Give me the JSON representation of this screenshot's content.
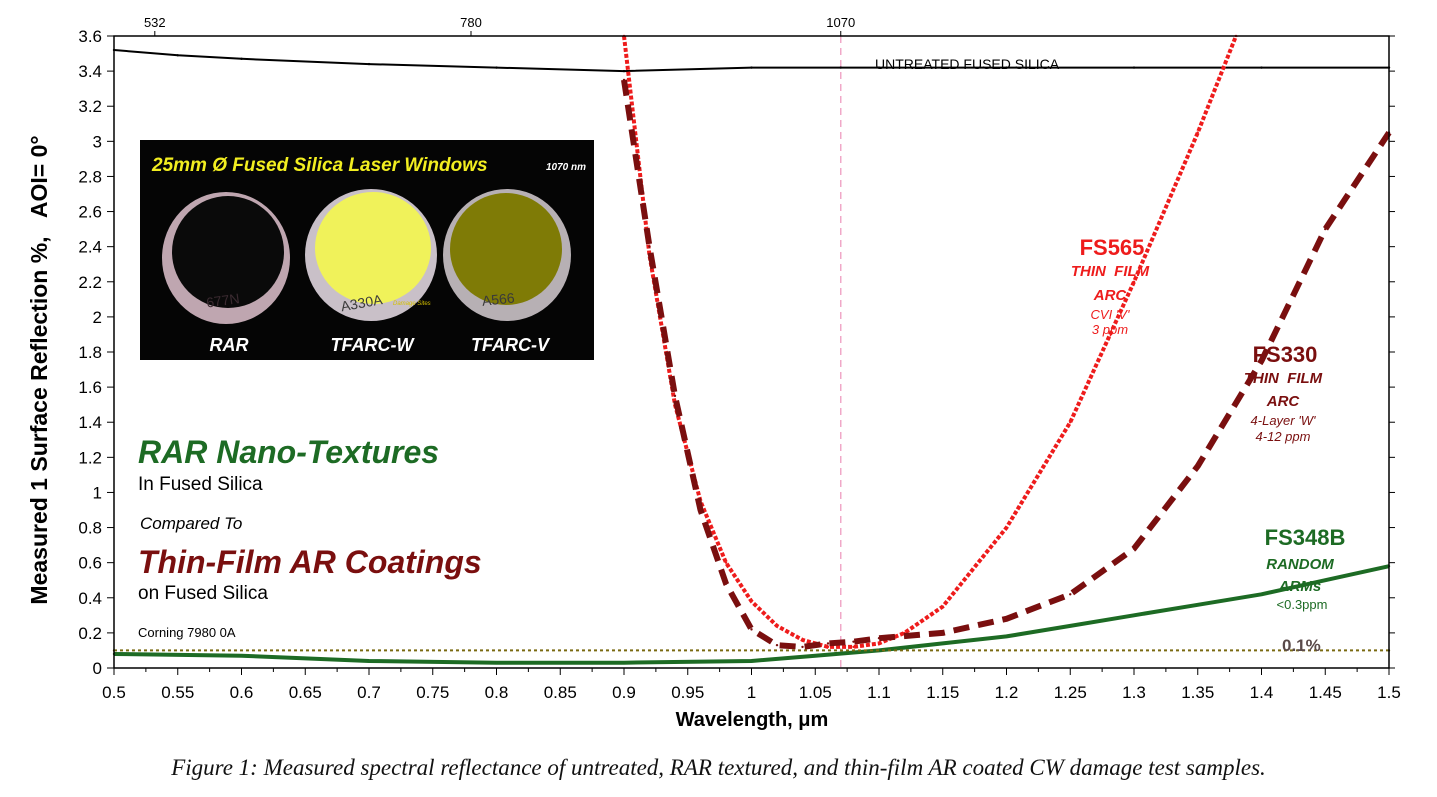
{
  "caption": "Figure 1:  Measured spectral reflectance of untreated, RAR textured, and thin-film AR coated CW damage test samples.",
  "colors": {
    "untreated": "#000000",
    "fs565": "#ee1c1c",
    "fs330": "#7a0f0f",
    "fs348b": "#1d6b24",
    "ref_line": "#7a6a10",
    "marker_line": "#f0a8c8",
    "green_text": "#1d6b24",
    "maroon_text": "#7a0f0f"
  },
  "chart_data": {
    "type": "line",
    "title": "",
    "xlabel": "Wavelength, μm",
    "ylabel": "Measured 1 Surface Reflection %,   AOI= 0°",
    "xlim": [
      0.5,
      1.5
    ],
    "ylim": [
      0,
      3.6
    ],
    "xticks": [
      "0.5",
      "0.55",
      "0.6",
      "0.65",
      "0.7",
      "0.75",
      "0.8",
      "0.85",
      "0.9",
      "0.95",
      "1",
      "1.05",
      "1.1",
      "1.15",
      "1.2",
      "1.25",
      "1.3",
      "1.35",
      "1.4",
      "1.45",
      "1.5"
    ],
    "yticks": [
      "0",
      "0.2",
      "0.4",
      "0.6",
      "0.8",
      "1",
      "1.2",
      "1.4",
      "1.6",
      "1.8",
      "2",
      "2.2",
      "2.4",
      "2.6",
      "2.8",
      "3",
      "3.2",
      "3.4",
      "3.6"
    ],
    "top_axis_labels": [
      {
        "x": 0.532,
        "label": "532"
      },
      {
        "x": 0.78,
        "label": "780"
      },
      {
        "x": 1.07,
        "label": "1070"
      }
    ],
    "grid": false,
    "series": [
      {
        "name": "UNTREATED FUSED SILICA",
        "style": "solid",
        "x": [
          0.5,
          0.55,
          0.6,
          0.7,
          0.8,
          0.9,
          1.0,
          1.07,
          1.1,
          1.2,
          1.3,
          1.4,
          1.5
        ],
        "y": [
          3.52,
          3.49,
          3.47,
          3.44,
          3.42,
          3.4,
          3.42,
          3.42,
          3.42,
          3.42,
          3.42,
          3.42,
          3.42
        ]
      },
      {
        "name": "FS565",
        "style": "dotted",
        "x": [
          0.9,
          0.92,
          0.94,
          0.96,
          0.98,
          1.0,
          1.02,
          1.04,
          1.06,
          1.08,
          1.1,
          1.12,
          1.15,
          1.2,
          1.25,
          1.3,
          1.35,
          1.38
        ],
        "y": [
          3.6,
          2.35,
          1.5,
          0.95,
          0.6,
          0.38,
          0.24,
          0.16,
          0.12,
          0.12,
          0.14,
          0.2,
          0.35,
          0.8,
          1.4,
          2.2,
          3.05,
          3.6
        ]
      },
      {
        "name": "FS330",
        "style": "dashed",
        "x": [
          0.9,
          0.92,
          0.94,
          0.96,
          0.98,
          1.0,
          1.02,
          1.04,
          1.06,
          1.08,
          1.1,
          1.15,
          1.2,
          1.25,
          1.3,
          1.35,
          1.4,
          1.45,
          1.5
        ],
        "y": [
          3.35,
          2.4,
          1.55,
          0.9,
          0.48,
          0.22,
          0.13,
          0.12,
          0.14,
          0.15,
          0.17,
          0.2,
          0.28,
          0.42,
          0.68,
          1.15,
          1.75,
          2.5,
          3.05
        ]
      },
      {
        "name": "FS348B",
        "style": "solid",
        "x": [
          0.5,
          0.6,
          0.7,
          0.8,
          0.9,
          1.0,
          1.05,
          1.1,
          1.15,
          1.2,
          1.25,
          1.3,
          1.35,
          1.4,
          1.45,
          1.5
        ],
        "y": [
          0.08,
          0.07,
          0.04,
          0.03,
          0.03,
          0.04,
          0.07,
          0.1,
          0.14,
          0.18,
          0.24,
          0.3,
          0.36,
          0.42,
          0.5,
          0.58
        ]
      },
      {
        "name": "0.1%",
        "style": "dotted",
        "x": [
          0.5,
          1.5
        ],
        "y": [
          0.1,
          0.1
        ]
      }
    ],
    "vertical_marker": {
      "x": 1.07,
      "style": "dashed"
    },
    "annotations": {
      "untreated": "UNTREATED FUSED SILICA",
      "fs565": {
        "title": "FS565",
        "l1": "THIN  FILM",
        "l2": "ARC",
        "l3": "CVI 'V'",
        "l4": "3 ppm"
      },
      "fs330": {
        "title": "FS330",
        "l1": "THIN  FILM",
        "l2": "ARC",
        "l3": "4-Layer 'W'",
        "l4": "4-12 ppm"
      },
      "fs348b": {
        "title": "FS348B",
        "l1": "RANDOM",
        "l2": "ARMs",
        "l3": "<0.3ppm"
      },
      "ref_line": "0.1%",
      "rar_title": "RAR Nano-Textures",
      "rar_sub": "In Fused Silica",
      "compared": "Compared To",
      "tf_title": "Thin-Film AR Coatings",
      "tf_sub": "on Fused Silica",
      "corning": "Corning 7980 0A"
    },
    "inset": {
      "title": "25mm Ø Fused Silica Laser Windows",
      "wavelength": "1070 nm",
      "labels": [
        "RAR",
        "TFARC-W",
        "TFARC-V"
      ],
      "damage": "Damage Sites",
      "engraved": [
        "677N",
        "A330A",
        "A566"
      ]
    }
  }
}
